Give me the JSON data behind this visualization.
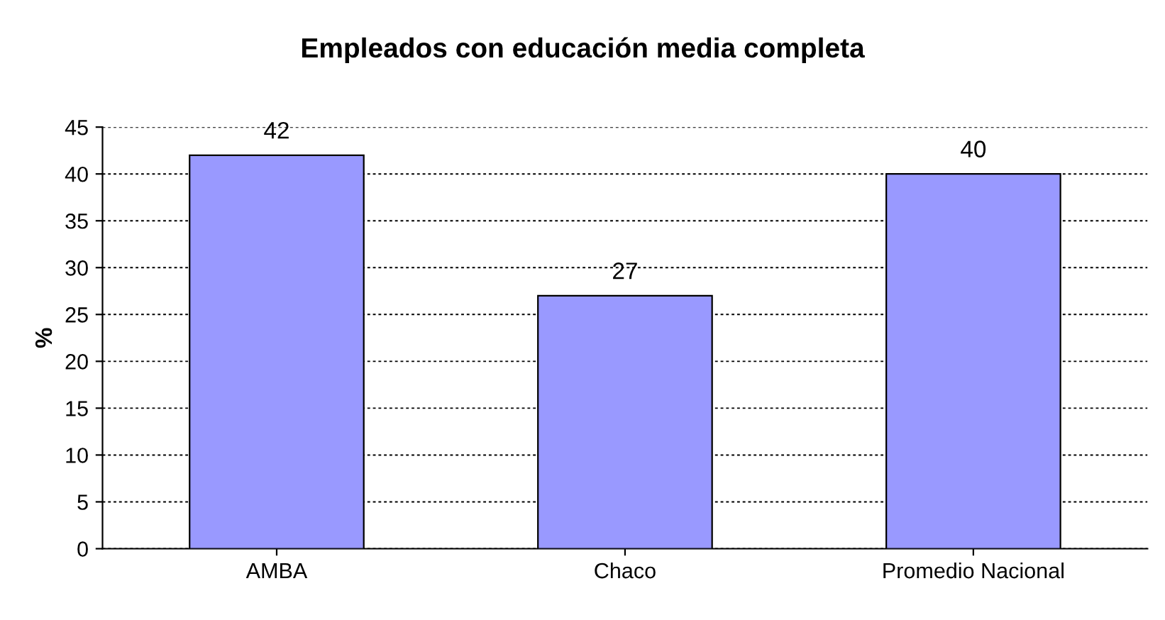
{
  "chart_data": {
    "type": "bar",
    "title": "Empleados con educación media completa",
    "ylabel": "%",
    "categories": [
      "AMBA",
      "Chaco",
      "Promedio Nacional"
    ],
    "values": [
      42,
      27,
      40
    ],
    "color": "#9999ff",
    "ylim": [
      0,
      45
    ],
    "yticks": [
      0,
      5,
      10,
      15,
      20,
      25,
      30,
      35,
      40,
      45
    ],
    "grid": "y",
    "data_labels": true
  }
}
